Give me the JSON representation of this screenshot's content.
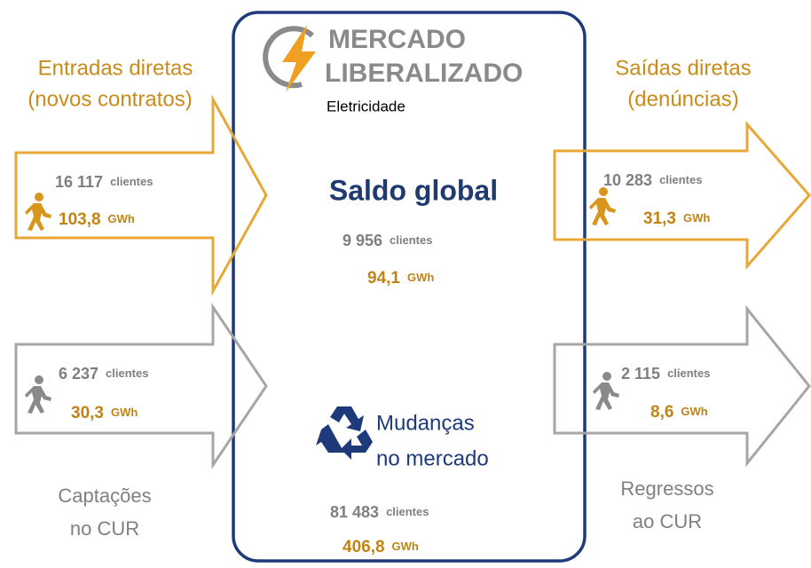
{
  "header": {
    "title_line1": "MERCADO",
    "title_line2": "LIBERALIZADO",
    "subtitle": "Eletricidade"
  },
  "entradas": {
    "label": [
      "Entradas diretas",
      "(novos contratos)"
    ],
    "clients": "16 117",
    "clients_unit": "clientes",
    "energy": "103,8",
    "energy_unit": "GWh"
  },
  "captacoes": {
    "label": [
      "Captações",
      "no CUR"
    ],
    "clients": "6 237",
    "clients_unit": "clientes",
    "energy": "30,3",
    "energy_unit": "GWh"
  },
  "saidas": {
    "label": [
      "Saídas diretas",
      "(denúncias)"
    ],
    "clients": "10 283",
    "clients_unit": "clientes",
    "energy": "31,3",
    "energy_unit": "GWh"
  },
  "regressos": {
    "label": [
      "Regressos",
      "ao CUR"
    ],
    "clients": "2 115",
    "clients_unit": "clientes",
    "energy": "8,6",
    "energy_unit": "GWh"
  },
  "saldo": {
    "title": "Saldo global",
    "clients": "9 956",
    "clients_unit": "clientes",
    "energy": "94,1",
    "energy_unit": "GWh"
  },
  "mudancas": {
    "label": [
      "Mudanças",
      "no mercado"
    ],
    "clients": "81 483",
    "clients_unit": "clientes",
    "energy": "406,8",
    "energy_unit": "GWh"
  }
}
